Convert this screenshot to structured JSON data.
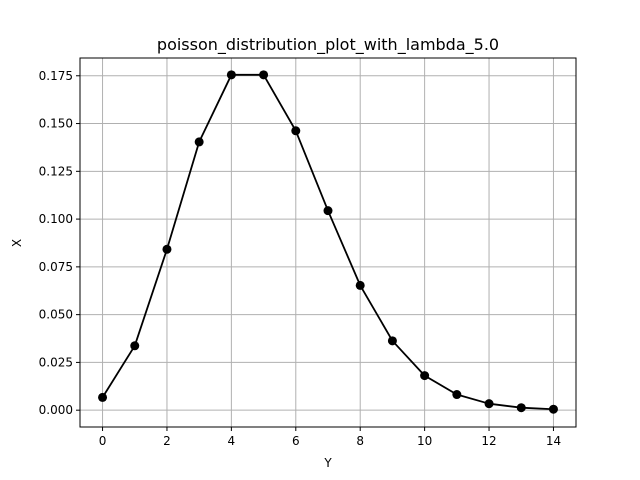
{
  "chart_data": {
    "type": "line",
    "title": "poisson_distribution_plot_with_lambda_5.0",
    "xlabel": "Y",
    "ylabel": "X",
    "x": [
      0,
      1,
      2,
      3,
      4,
      5,
      6,
      7,
      8,
      9,
      10,
      11,
      12,
      13,
      14
    ],
    "series": [
      {
        "values": [
          0.0067,
          0.0337,
          0.0842,
          0.1404,
          0.1755,
          0.1755,
          0.1462,
          0.1044,
          0.0653,
          0.0363,
          0.0181,
          0.0082,
          0.0034,
          0.0013,
          0.0005
        ],
        "color": "#000000",
        "marker": "circle"
      }
    ],
    "xlim": [
      -0.7,
      14.7
    ],
    "ylim": [
      -0.0088,
      0.1843
    ],
    "xticks": [
      0,
      2,
      4,
      6,
      8,
      10,
      12,
      14
    ],
    "xtick_labels": [
      "0",
      "2",
      "4",
      "6",
      "8",
      "10",
      "12",
      "14"
    ],
    "yticks": [
      0.0,
      0.025,
      0.05,
      0.075,
      0.1,
      0.125,
      0.15,
      0.175
    ],
    "ytick_labels": [
      "0.000",
      "0.025",
      "0.050",
      "0.075",
      "0.100",
      "0.125",
      "0.150",
      "0.175"
    ],
    "grid": true,
    "grid_color": "#b0b0b0",
    "legend": false
  }
}
